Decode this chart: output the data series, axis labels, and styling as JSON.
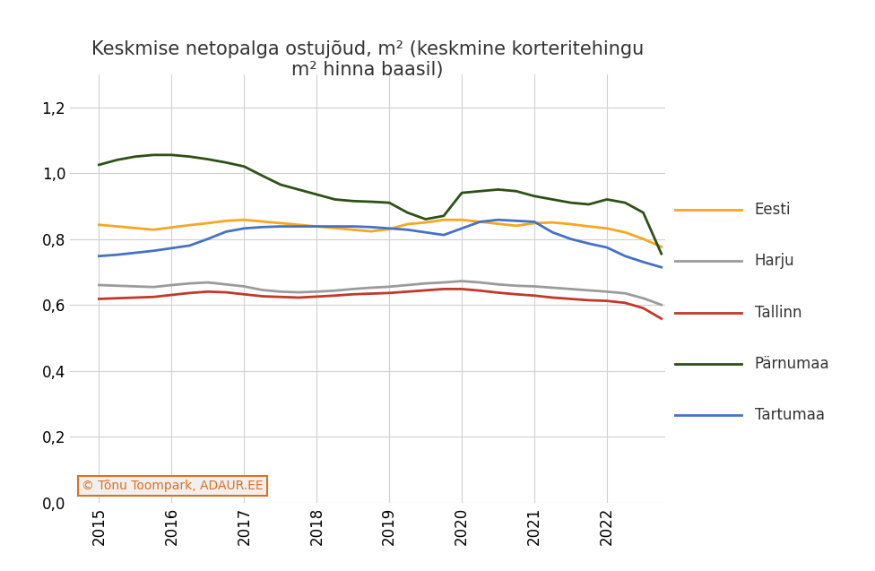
{
  "title": "Keskmise netopalga ostujõud, m² (keskmine korteritehingu\nm² hinna baasil)",
  "ylim": [
    0.0,
    1.3
  ],
  "yticks": [
    0.0,
    0.2,
    0.4,
    0.6,
    0.8,
    1.0,
    1.2
  ],
  "ytick_labels": [
    "0,0",
    "0,2",
    "0,4",
    "0,6",
    "0,8",
    "1,0",
    "1,2"
  ],
  "xtick_labels": [
    "2015",
    "2016",
    "2017",
    "2018",
    "2019",
    "2020",
    "2021",
    "2022"
  ],
  "xlim": [
    2014.6,
    2022.8
  ],
  "background_color": "#ffffff",
  "grid_color": "#d0d0d0",
  "series": [
    {
      "name": "Eesti",
      "color": "#F5A623",
      "data": [
        0.843,
        0.838,
        0.833,
        0.828,
        0.835,
        0.842,
        0.848,
        0.855,
        0.858,
        0.853,
        0.848,
        0.843,
        0.838,
        0.833,
        0.828,
        0.823,
        0.83,
        0.845,
        0.85,
        0.858,
        0.858,
        0.852,
        0.846,
        0.84,
        0.848,
        0.85,
        0.845,
        0.838,
        0.832,
        0.82,
        0.8,
        0.776
      ]
    },
    {
      "name": "Harju",
      "color": "#9B9B9B",
      "data": [
        0.66,
        0.658,
        0.656,
        0.654,
        0.66,
        0.665,
        0.668,
        0.662,
        0.656,
        0.645,
        0.64,
        0.638,
        0.64,
        0.643,
        0.648,
        0.652,
        0.655,
        0.66,
        0.665,
        0.668,
        0.672,
        0.668,
        0.662,
        0.658,
        0.656,
        0.652,
        0.648,
        0.644,
        0.64,
        0.635,
        0.62,
        0.6
      ]
    },
    {
      "name": "Tallinn",
      "color": "#C0392B",
      "data": [
        0.618,
        0.62,
        0.622,
        0.624,
        0.63,
        0.636,
        0.64,
        0.638,
        0.632,
        0.626,
        0.624,
        0.622,
        0.625,
        0.628,
        0.632,
        0.634,
        0.636,
        0.64,
        0.644,
        0.648,
        0.648,
        0.643,
        0.637,
        0.632,
        0.628,
        0.622,
        0.618,
        0.614,
        0.612,
        0.606,
        0.59,
        0.558
      ]
    },
    {
      "name": "Pärnumaa",
      "color": "#2D5016",
      "data": [
        1.025,
        1.04,
        1.05,
        1.055,
        1.055,
        1.05,
        1.042,
        1.032,
        1.02,
        0.992,
        0.965,
        0.95,
        0.935,
        0.92,
        0.915,
        0.913,
        0.91,
        0.88,
        0.86,
        0.87,
        0.94,
        0.945,
        0.95,
        0.945,
        0.93,
        0.92,
        0.91,
        0.905,
        0.92,
        0.91,
        0.88,
        0.755
      ]
    },
    {
      "name": "Tartumaa",
      "color": "#4472C4",
      "data": [
        0.748,
        0.752,
        0.758,
        0.764,
        0.772,
        0.78,
        0.8,
        0.822,
        0.832,
        0.836,
        0.838,
        0.838,
        0.838,
        0.838,
        0.838,
        0.836,
        0.832,
        0.828,
        0.82,
        0.812,
        0.832,
        0.852,
        0.858,
        0.855,
        0.852,
        0.82,
        0.8,
        0.786,
        0.774,
        0.748,
        0.73,
        0.714
      ]
    }
  ],
  "watermark_text": "© Tõnu Toompark, ADAUR.EE",
  "watermark_color": "#E07020",
  "watermark_border": "#E07020",
  "watermark_bg": "#f0f0f0",
  "title_fontsize": 15,
  "legend_fontsize": 12,
  "tick_fontsize": 12,
  "linewidth": 2.0
}
